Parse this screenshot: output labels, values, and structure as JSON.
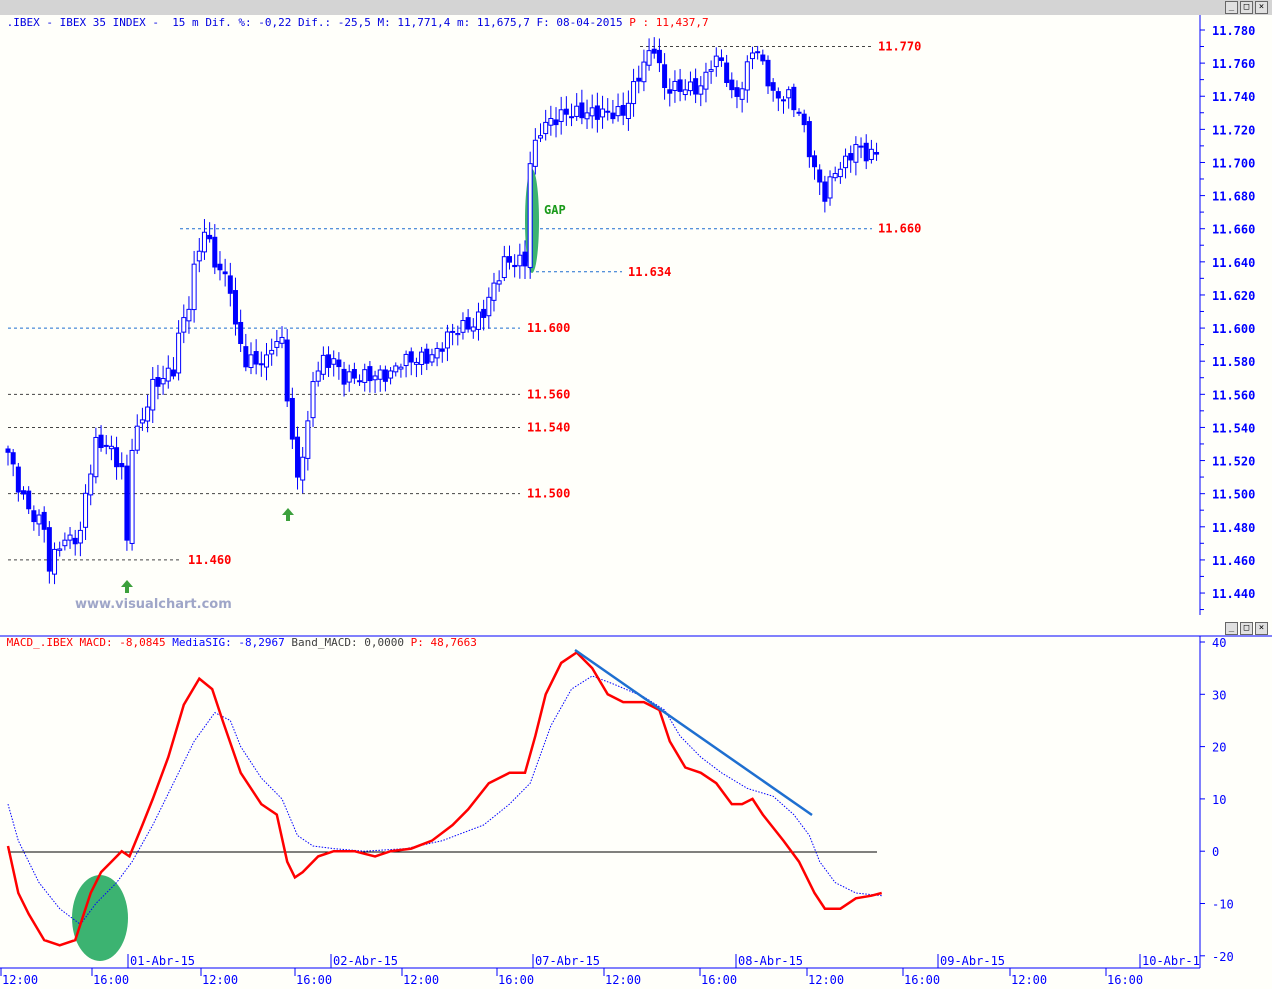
{
  "header": {
    "symbol": ".IBEX - IBEX 35 INDEX -  15 m",
    "dif_pct": "Dif. %: -0,22",
    "dif": "Dif.: -25,5",
    "max": "M: 11,771,4",
    "min": "m: 11,675,7",
    "date": "F: 08-04-2015",
    "price": "P : 11,437,7"
  },
  "macd_header": {
    "name": "MACD_.IBEX",
    "macd": "MACD: -8,0845",
    "signal": "MediaSIG: -8,2967",
    "band": "Band_MACD: 0,0000",
    "p": "P: 48,7663"
  },
  "window_controls": {
    "minimize": "_",
    "maximize": "□",
    "close": "×"
  },
  "watermark": "www.visualchart.com",
  "annotations": {
    "gap": "GAP"
  },
  "colors": {
    "candle": "#0000ff",
    "macd": "#ff0000",
    "signal": "#0000ff",
    "ellipse": "#3cb371",
    "levels_label": "#ff0000"
  },
  "chart_data": [
    {
      "type": "candlestick",
      "title": "IBEX 35 15m",
      "ylim": [
        11.43,
        11.79
      ],
      "yticks": [
        "11.780",
        "11.760",
        "11.740",
        "11.720",
        "11.700",
        "11.680",
        "11.660",
        "11.640",
        "11.620",
        "11.600",
        "11.580",
        "11.560",
        "11.540",
        "11.520",
        "11.500",
        "11.480",
        "11.460",
        "11.440"
      ],
      "close_path": [
        [
          0,
          11.525
        ],
        [
          2,
          11.505
        ],
        [
          4,
          11.49
        ],
        [
          7,
          11.48
        ],
        [
          8,
          11.455
        ],
        [
          10,
          11.47
        ],
        [
          14,
          11.475
        ],
        [
          15,
          11.5
        ],
        [
          17,
          11.53
        ],
        [
          19,
          11.53
        ],
        [
          22,
          11.515
        ],
        [
          23,
          11.47
        ],
        [
          24,
          11.53
        ],
        [
          26,
          11.545
        ],
        [
          28,
          11.565
        ],
        [
          30,
          11.57
        ],
        [
          32,
          11.575
        ],
        [
          33,
          11.595
        ],
        [
          35,
          11.615
        ],
        [
          36,
          11.635
        ],
        [
          38,
          11.66
        ],
        [
          40,
          11.64
        ],
        [
          42,
          11.63
        ],
        [
          43,
          11.625
        ],
        [
          44,
          11.6
        ],
        [
          46,
          11.58
        ],
        [
          50,
          11.58
        ],
        [
          51,
          11.59
        ],
        [
          53,
          11.592
        ],
        [
          54,
          11.56
        ],
        [
          55,
          11.53
        ],
        [
          56,
          11.51
        ],
        [
          58,
          11.54
        ],
        [
          59,
          11.57
        ],
        [
          61,
          11.58
        ],
        [
          63,
          11.58
        ],
        [
          65,
          11.57
        ],
        [
          74,
          11.572
        ],
        [
          76,
          11.58
        ],
        [
          81,
          11.582
        ],
        [
          83,
          11.585
        ],
        [
          85,
          11.595
        ],
        [
          87,
          11.6
        ],
        [
          90,
          11.602
        ],
        [
          92,
          11.61
        ],
        [
          94,
          11.625
        ],
        [
          96,
          11.64
        ],
        [
          99,
          11.64
        ],
        [
          100,
          11.64
        ],
        [
          101,
          11.7
        ],
        [
          103,
          11.72
        ],
        [
          105,
          11.725
        ],
        [
          108,
          11.73
        ],
        [
          119,
          11.73
        ],
        [
          121,
          11.745
        ],
        [
          123,
          11.76
        ],
        [
          125,
          11.77
        ],
        [
          127,
          11.745
        ],
        [
          134,
          11.745
        ],
        [
          136,
          11.76
        ],
        [
          138,
          11.762
        ],
        [
          140,
          11.74
        ],
        [
          142,
          11.745
        ],
        [
          144,
          11.77
        ],
        [
          146,
          11.76
        ],
        [
          148,
          11.74
        ],
        [
          151,
          11.74
        ],
        [
          153,
          11.73
        ],
        [
          154,
          11.72
        ],
        [
          156,
          11.695
        ],
        [
          158,
          11.68
        ],
        [
          160,
          11.695
        ],
        [
          162,
          11.7
        ],
        [
          164,
          11.71
        ],
        [
          166,
          11.705
        ],
        [
          168,
          11.705
        ]
      ],
      "levels": [
        {
          "value": "11.770",
          "style": "dashed-black"
        },
        {
          "value": "11.660",
          "style": "dashed-blue"
        },
        {
          "value": "11.634",
          "style": "dashed-blue"
        },
        {
          "value": "11.600",
          "style": "dashed-blue"
        },
        {
          "value": "11.560",
          "style": "dashed-black"
        },
        {
          "value": "11.540",
          "style": "dashed-black"
        },
        {
          "value": "11.500",
          "style": "dashed-black"
        },
        {
          "value": "11.460",
          "style": "dashed-black"
        }
      ]
    },
    {
      "type": "line",
      "title": "MACD",
      "ylim": [
        -20,
        40
      ],
      "yticks": [
        "40",
        "30",
        "20",
        "10",
        "0",
        "-10",
        "-20"
      ],
      "x_time_labels": [
        "12:00",
        "16:00",
        "12:00",
        "16:00",
        "12:00",
        "16:00",
        "12:00",
        "16:00",
        "12:00",
        "16:00",
        "12:00",
        "16:00"
      ],
      "x_date_labels": [
        "01-Abr-15",
        "02-Abr-15",
        "07-Abr-15",
        "08-Abr-15",
        "09-Abr-15",
        "10-Abr-1"
      ],
      "series": [
        {
          "name": "MACD",
          "color": "#ff0000",
          "points": [
            [
              0,
              1
            ],
            [
              2,
              -8
            ],
            [
              4,
              -12
            ],
            [
              7,
              -17
            ],
            [
              10,
              -18
            ],
            [
              13,
              -17
            ],
            [
              16,
              -8
            ],
            [
              18,
              -4
            ],
            [
              20,
              -2
            ],
            [
              22,
              0
            ],
            [
              23.5,
              -1
            ],
            [
              26,
              5
            ],
            [
              28,
              10
            ],
            [
              31,
              18
            ],
            [
              34,
              28
            ],
            [
              37,
              33
            ],
            [
              39.5,
              31
            ],
            [
              41.5,
              25
            ],
            [
              45,
              15
            ],
            [
              49,
              9
            ],
            [
              52,
              7
            ],
            [
              54,
              -2
            ],
            [
              55.5,
              -5
            ],
            [
              57,
              -4
            ],
            [
              60,
              -1
            ],
            [
              63,
              0
            ],
            [
              67,
              0
            ],
            [
              71,
              -1
            ],
            [
              74,
              0
            ],
            [
              78,
              0.5
            ],
            [
              82,
              2
            ],
            [
              86,
              5
            ],
            [
              89,
              8
            ],
            [
              93,
              13
            ],
            [
              97,
              15
            ],
            [
              100,
              15
            ],
            [
              102,
              22
            ],
            [
              104,
              30
            ],
            [
              107,
              36
            ],
            [
              110,
              38
            ],
            [
              113,
              35
            ],
            [
              116,
              30
            ],
            [
              119,
              28.5
            ],
            [
              123,
              28.5
            ],
            [
              126,
              27
            ],
            [
              128,
              21
            ],
            [
              131,
              16
            ],
            [
              134,
              15
            ],
            [
              137,
              13
            ],
            [
              140,
              9
            ],
            [
              142,
              9
            ],
            [
              144,
              10
            ],
            [
              146,
              7
            ],
            [
              150,
              2
            ],
            [
              153,
              -2
            ],
            [
              156,
              -8
            ],
            [
              158,
              -11
            ],
            [
              161,
              -11
            ],
            [
              164,
              -9
            ],
            [
              167,
              -8.5
            ],
            [
              169,
              -8
            ]
          ]
        },
        {
          "name": "MediaSIG",
          "color": "#0000ff",
          "points": [
            [
              0,
              9
            ],
            [
              2,
              2
            ],
            [
              6,
              -6
            ],
            [
              10,
              -11
            ],
            [
              14,
              -14
            ],
            [
              17,
              -10
            ],
            [
              21,
              -6
            ],
            [
              24,
              -2
            ],
            [
              28,
              5
            ],
            [
              32,
              13
            ],
            [
              36,
              21
            ],
            [
              40,
              26.5
            ],
            [
              43,
              25
            ],
            [
              45,
              20
            ],
            [
              49,
              14
            ],
            [
              53,
              10
            ],
            [
              56,
              3
            ],
            [
              59,
              1
            ],
            [
              63,
              0.5
            ],
            [
              69,
              0
            ],
            [
              77,
              0.5
            ],
            [
              84,
              2
            ],
            [
              92,
              5
            ],
            [
              97,
              9
            ],
            [
              101,
              13
            ],
            [
              105,
              24
            ],
            [
              109,
              31
            ],
            [
              113,
              33.5
            ],
            [
              117,
              32
            ],
            [
              123,
              29.5
            ],
            [
              127,
              27
            ],
            [
              130,
              22
            ],
            [
              134,
              18
            ],
            [
              138,
              15
            ],
            [
              143,
              12
            ],
            [
              148,
              10.5
            ],
            [
              152,
              7
            ],
            [
              155,
              3
            ],
            [
              157,
              -2
            ],
            [
              160,
              -6
            ],
            [
              164,
              -8
            ],
            [
              169,
              -8.5
            ]
          ]
        }
      ]
    }
  ]
}
